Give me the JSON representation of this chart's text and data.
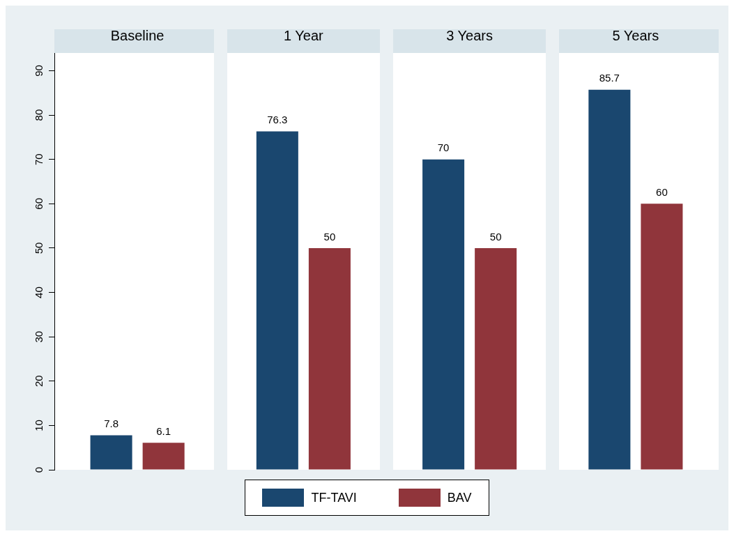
{
  "chart_data": {
    "type": "bar",
    "categories": [
      "Baseline",
      "1 Year",
      "3 Years",
      "5 Years"
    ],
    "series": [
      {
        "name": "TF-TAVI",
        "color": "#1a476f",
        "values": [
          7.8,
          76.3,
          70,
          85.7
        ]
      },
      {
        "name": "BAV",
        "color": "#90353b",
        "values": [
          6.1,
          50,
          50,
          60
        ]
      }
    ],
    "ylim": [
      0,
      94
    ],
    "yticks": [
      0,
      10,
      20,
      30,
      40,
      50,
      60,
      70,
      80,
      90
    ],
    "data_labels": true,
    "grid": false,
    "legend": "bottom"
  }
}
